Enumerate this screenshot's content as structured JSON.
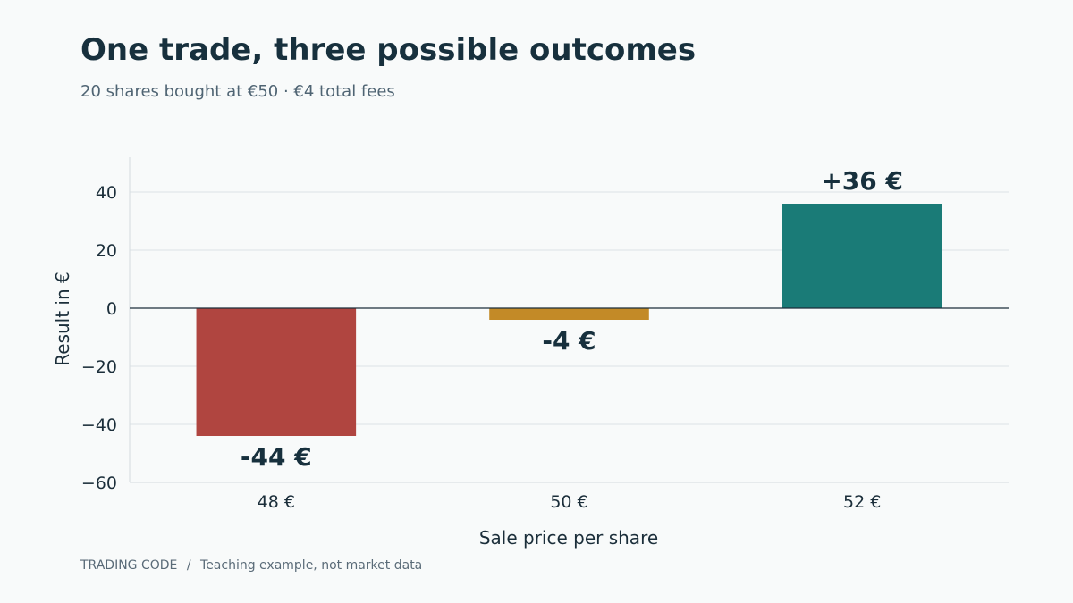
{
  "header": {
    "title": "One trade, three possible outcomes",
    "subtitle": "20 shares bought at €50 · €4 total fees"
  },
  "footer": {
    "brand": "TRADING CODE",
    "separator": "/",
    "note": "Teaching example, not market data"
  },
  "chart_data": {
    "type": "bar",
    "title": "One trade, three possible outcomes",
    "subtitle": "20 shares bought at €50 · €4 total fees",
    "xlabel": "Sale price per share",
    "ylabel": "Result in €",
    "categories": [
      "48 €",
      "50 €",
      "52 €"
    ],
    "values": [
      -44,
      -4,
      36
    ],
    "data_labels": [
      "-44 €",
      "-4 €",
      "+36 €"
    ],
    "colors": [
      "#b04540",
      "#c38a27",
      "#1a7b77"
    ],
    "ylim": [
      -60,
      52
    ],
    "yticks": [
      40,
      20,
      0,
      -20,
      -40,
      -60
    ],
    "ytick_labels": [
      "40",
      "20",
      "0",
      "−20",
      "−40",
      "−60"
    ],
    "grid": true,
    "zero_line": true,
    "legend": "none"
  }
}
